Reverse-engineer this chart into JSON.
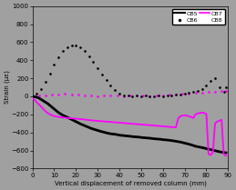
{
  "title": "",
  "xlabel": "Vertical displacement of removed column (mm)",
  "ylabel": "Strain (με)",
  "xlim": [
    0,
    90
  ],
  "ylim": [
    -800,
    1000
  ],
  "xticks": [
    0,
    10,
    20,
    30,
    40,
    50,
    60,
    70,
    80,
    90
  ],
  "yticks": [
    -800,
    -600,
    -400,
    -200,
    0,
    200,
    400,
    600,
    800,
    1000
  ],
  "background_color": "#a0a0a0",
  "cb5_x": [
    0,
    1,
    2,
    3,
    4,
    5,
    6,
    7,
    8,
    9,
    10,
    11,
    12,
    13,
    14,
    15,
    16,
    17,
    18,
    19,
    20,
    21,
    22,
    23,
    24,
    25,
    26,
    27,
    28,
    29,
    30,
    31,
    32,
    33,
    34,
    35,
    36,
    37,
    38,
    39,
    40,
    41,
    42,
    43,
    44,
    45,
    46,
    47,
    48,
    49,
    50,
    51,
    52,
    53,
    54,
    55,
    56,
    57,
    58,
    59,
    60,
    61,
    62,
    63,
    64,
    65,
    66,
    67,
    68,
    69,
    70,
    71,
    72,
    73,
    74,
    75,
    76,
    77,
    78,
    79,
    80,
    81,
    82,
    83,
    84,
    85,
    86,
    87,
    88,
    89
  ],
  "cb5_y": [
    0,
    -5,
    -10,
    -20,
    -35,
    -50,
    -65,
    -80,
    -100,
    -120,
    -140,
    -160,
    -180,
    -195,
    -210,
    -220,
    -232,
    -244,
    -256,
    -268,
    -280,
    -292,
    -304,
    -315,
    -325,
    -335,
    -345,
    -355,
    -363,
    -370,
    -378,
    -385,
    -392,
    -398,
    -405,
    -410,
    -415,
    -418,
    -420,
    -425,
    -430,
    -433,
    -435,
    -438,
    -440,
    -443,
    -446,
    -448,
    -450,
    -452,
    -455,
    -458,
    -460,
    -462,
    -464,
    -467,
    -470,
    -472,
    -474,
    -476,
    -480,
    -482,
    -484,
    -487,
    -490,
    -494,
    -498,
    -502,
    -506,
    -512,
    -518,
    -524,
    -530,
    -537,
    -545,
    -553,
    -558,
    -563,
    -568,
    -573,
    -580,
    -585,
    -590,
    -596,
    -602,
    -608,
    -614,
    -618,
    -622,
    -625
  ],
  "cb6_x": [
    0,
    2,
    4,
    6,
    8,
    10,
    12,
    14,
    16,
    18,
    20,
    22,
    24,
    26,
    28,
    30,
    32,
    34,
    36,
    38,
    40,
    42,
    44,
    46,
    48,
    50,
    52,
    54,
    56,
    58,
    60,
    62,
    64,
    66,
    68,
    70,
    72,
    74,
    76,
    78,
    80,
    82,
    84,
    86,
    88,
    89
  ],
  "cb6_y": [
    0,
    30,
    80,
    160,
    250,
    350,
    430,
    500,
    540,
    560,
    560,
    540,
    500,
    440,
    380,
    310,
    240,
    180,
    120,
    70,
    30,
    10,
    5,
    0,
    5,
    0,
    5,
    -5,
    0,
    5,
    0,
    10,
    5,
    15,
    20,
    30,
    40,
    50,
    60,
    80,
    120,
    170,
    200,
    100,
    50,
    100
  ],
  "cb7_x": [
    0,
    1,
    2,
    3,
    4,
    5,
    6,
    7,
    8,
    9,
    10,
    11,
    12,
    13,
    14,
    15,
    16,
    17,
    18,
    19,
    20,
    21,
    22,
    23,
    24,
    25,
    26,
    27,
    28,
    29,
    30,
    31,
    32,
    33,
    34,
    35,
    36,
    37,
    38,
    39,
    40,
    41,
    42,
    43,
    44,
    45,
    46,
    47,
    48,
    49,
    50,
    51,
    52,
    53,
    54,
    55,
    56,
    57,
    58,
    59,
    60,
    61,
    62,
    63,
    64,
    65,
    66,
    67,
    68,
    69,
    70,
    71,
    72,
    73,
    74,
    75,
    76,
    77,
    78,
    79,
    80,
    81,
    82,
    83,
    84,
    85,
    86,
    87,
    88,
    89
  ],
  "cb7_y": [
    -20,
    -40,
    -65,
    -90,
    -115,
    -140,
    -165,
    -185,
    -200,
    -210,
    -218,
    -224,
    -228,
    -232,
    -235,
    -238,
    -240,
    -242,
    -244,
    -246,
    -248,
    -250,
    -252,
    -254,
    -257,
    -260,
    -263,
    -266,
    -268,
    -270,
    -272,
    -274,
    -276,
    -278,
    -280,
    -282,
    -284,
    -286,
    -288,
    -290,
    -292,
    -294,
    -296,
    -298,
    -300,
    -302,
    -304,
    -306,
    -308,
    -310,
    -312,
    -314,
    -316,
    -318,
    -320,
    -322,
    -324,
    -326,
    -328,
    -330,
    -332,
    -334,
    -336,
    -338,
    -340,
    -342,
    -344,
    -248,
    -220,
    -215,
    -210,
    -215,
    -220,
    -230,
    -240,
    -200,
    -190,
    -185,
    -180,
    -185,
    -195,
    -640,
    -650,
    -620,
    -300,
    -280,
    -270,
    -260,
    -640,
    -660
  ],
  "cb8_x": [
    0,
    3,
    6,
    9,
    12,
    15,
    18,
    21,
    24,
    27,
    30,
    33,
    36,
    39,
    42,
    45,
    48,
    51,
    54,
    57,
    60,
    63,
    66,
    69,
    72,
    75,
    78,
    81,
    84,
    87,
    89
  ],
  "cb8_y": [
    0,
    5,
    10,
    15,
    20,
    25,
    20,
    15,
    10,
    5,
    0,
    5,
    10,
    5,
    0,
    5,
    10,
    5,
    0,
    5,
    10,
    15,
    20,
    25,
    30,
    35,
    40,
    45,
    50,
    60,
    65
  ]
}
